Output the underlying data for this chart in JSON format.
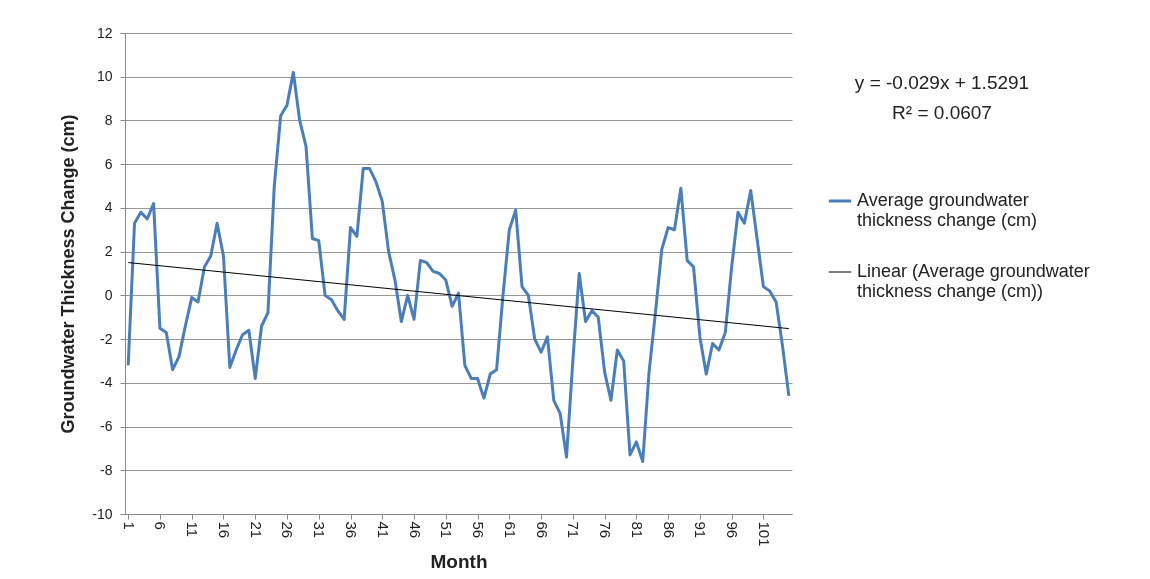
{
  "chart_data": {
    "type": "line",
    "xlabel": "Month",
    "ylabel": "Groundwater Thickness Change (cm)",
    "x": [
      1,
      2,
      3,
      4,
      5,
      6,
      7,
      8,
      9,
      10,
      11,
      12,
      13,
      14,
      15,
      16,
      17,
      18,
      19,
      20,
      21,
      22,
      23,
      24,
      25,
      26,
      27,
      28,
      29,
      30,
      31,
      32,
      33,
      34,
      35,
      36,
      37,
      38,
      39,
      40,
      41,
      42,
      43,
      44,
      45,
      46,
      47,
      48,
      49,
      50,
      51,
      52,
      53,
      54,
      55,
      56,
      57,
      58,
      59,
      60,
      61,
      62,
      63,
      64,
      65,
      66,
      67,
      68,
      69,
      70,
      71,
      72,
      73,
      74,
      75,
      76,
      77,
      78,
      79,
      80,
      81,
      82,
      83,
      84,
      85,
      86,
      87,
      88,
      89,
      90,
      91,
      92,
      93,
      94,
      95,
      96,
      97,
      98,
      99,
      100,
      101,
      102,
      103,
      104,
      105
    ],
    "series": [
      {
        "name": "Average groundwater thickness change (cm)",
        "color": "#4a7ebb",
        "values": [
          -3.2,
          3.3,
          3.8,
          3.5,
          4.2,
          -1.5,
          -1.7,
          -3.4,
          -2.8,
          -1.4,
          -0.1,
          -0.3,
          1.3,
          1.8,
          3.3,
          1.8,
          -3.3,
          -2.5,
          -1.8,
          -1.6,
          -3.8,
          -1.4,
          -0.8,
          5.0,
          8.2,
          8.7,
          10.2,
          8.0,
          6.8,
          2.6,
          2.5,
          0.0,
          -0.2,
          -0.7,
          -1.1,
          3.1,
          2.7,
          5.8,
          5.8,
          5.2,
          4.3,
          2.0,
          0.7,
          -1.2,
          0.0,
          -1.1,
          1.6,
          1.5,
          1.1,
          1.0,
          0.7,
          -0.5,
          0.1,
          -3.2,
          -3.8,
          -3.8,
          -4.7,
          -3.6,
          -3.4,
          0.0,
          3.0,
          3.9,
          0.4,
          0.0,
          -2.0,
          -2.6,
          -1.9,
          -4.8,
          -5.4,
          -7.4,
          -3.0,
          1.0,
          -1.2,
          -0.7,
          -1.0,
          -3.5,
          -4.8,
          -2.5,
          -3.0,
          -7.3,
          -6.7,
          -7.6,
          -3.5,
          -0.8,
          2.1,
          3.1,
          3.0,
          4.9,
          1.6,
          1.3,
          -1.9,
          -3.6,
          -2.2,
          -2.5,
          -1.7,
          1.3,
          3.8,
          3.3,
          4.8,
          2.6,
          0.4,
          0.2,
          -0.3,
          -2.3,
          -4.6
        ]
      },
      {
        "name": "Linear (Average groundwater thickness change (cm))",
        "color": "#000000",
        "type": "line",
        "x": [
          1,
          105
        ],
        "values": [
          1.5,
          -1.52
        ]
      }
    ],
    "xlim": [
      0.5,
      105.5
    ],
    "xticks": [
      1,
      6,
      11,
      16,
      21,
      26,
      31,
      36,
      41,
      46,
      51,
      56,
      61,
      66,
      71,
      76,
      81,
      86,
      91,
      96,
      101
    ],
    "ylim": [
      -10,
      12
    ],
    "yticks": [
      -10,
      -8,
      -6,
      -4,
      -2,
      0,
      2,
      4,
      6,
      8,
      10,
      12
    ],
    "grid": "y",
    "legend": "right",
    "annotations": [
      "y = -0.029x + 1.5291",
      "R² = 0.0607"
    ]
  }
}
